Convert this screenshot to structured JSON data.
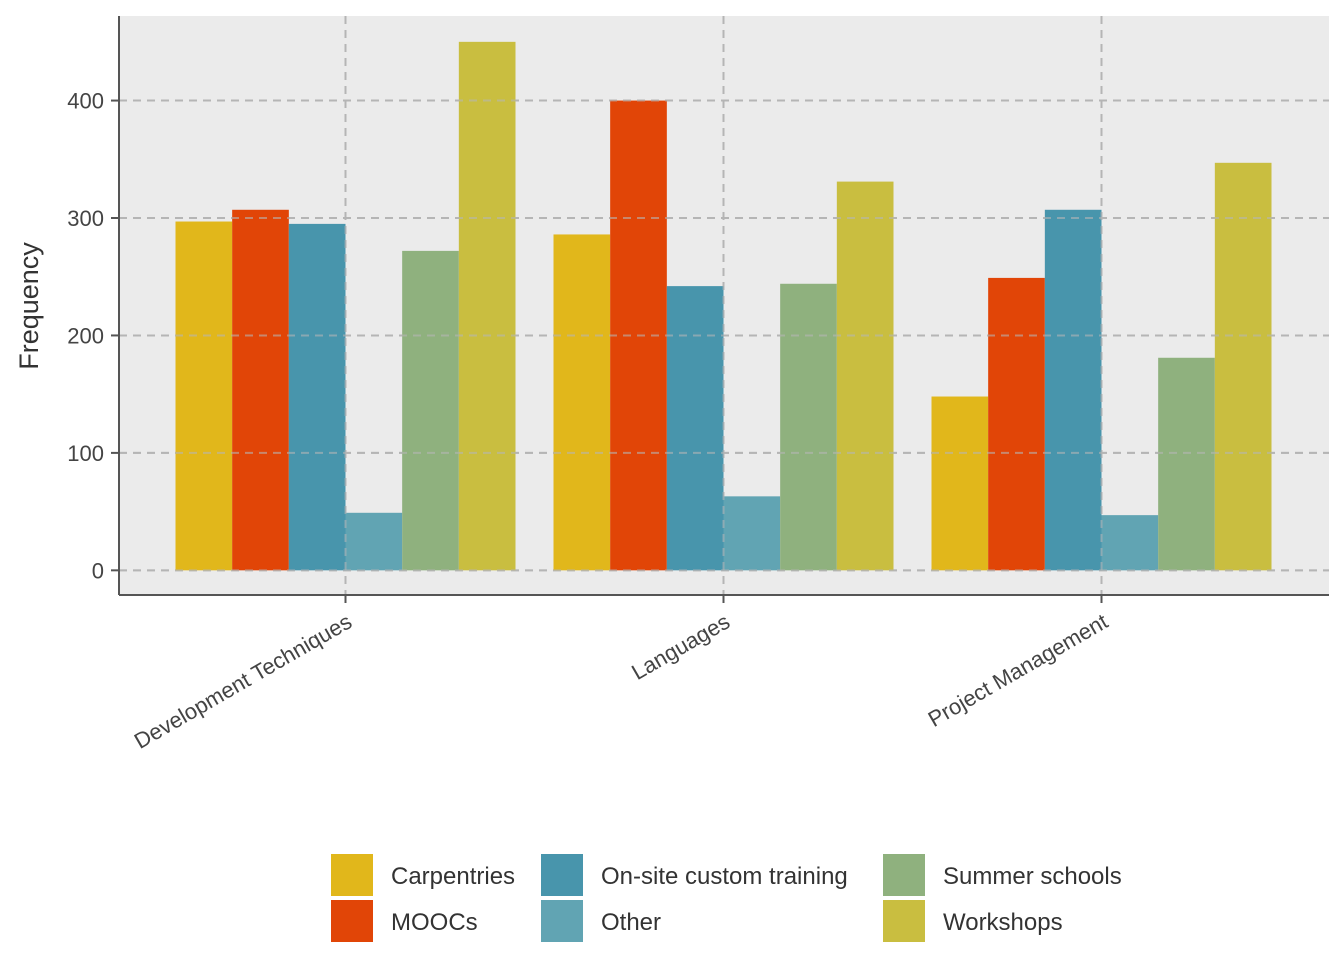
{
  "chart_data": {
    "type": "bar",
    "categories": [
      "Development Techniques",
      "Languages",
      "Project Management"
    ],
    "series": [
      {
        "name": "Carpentries",
        "color": "#E1B71B",
        "values": [
          297,
          286,
          148
        ]
      },
      {
        "name": "MOOCs",
        "color": "#E14507",
        "values": [
          307,
          400,
          249
        ]
      },
      {
        "name": "On-site custom training",
        "color": "#4895AC",
        "values": [
          295,
          242,
          307
        ]
      },
      {
        "name": "Other",
        "color": "#61A4B3",
        "values": [
          49,
          63,
          47
        ]
      },
      {
        "name": "Summer schools",
        "color": "#8FB17E",
        "values": [
          272,
          244,
          181
        ]
      },
      {
        "name": "Workshops",
        "color": "#C9BE40",
        "values": [
          450,
          331,
          347
        ]
      }
    ],
    "xlabel": "",
    "ylabel": "Frequency",
    "ylim": [
      -21,
      472
    ],
    "yticks": [
      0,
      100,
      200,
      300,
      400
    ],
    "grid": true,
    "grid_style": "dashed",
    "panel_background": "#EBEBEB",
    "legend_position": "bottom",
    "x_tick_rotation_deg": -30
  }
}
